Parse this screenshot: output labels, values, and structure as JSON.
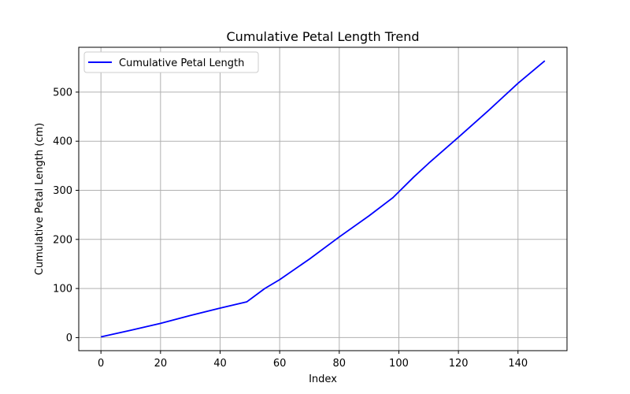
{
  "chart_data": {
    "type": "line",
    "title": "Cumulative Petal Length Trend",
    "xlabel": "Index",
    "ylabel": "Cumulative Petal Length (cm)",
    "xlim": [
      -7.45,
      156.45
    ],
    "ylim": [
      -26.6,
      591.3
    ],
    "xticks": [
      0,
      20,
      40,
      60,
      80,
      100,
      120,
      140
    ],
    "yticks": [
      0,
      100,
      200,
      300,
      400,
      500
    ],
    "grid": true,
    "legend_position": "top-left",
    "series": [
      {
        "name": "Cumulative Petal Length",
        "color": "#0000ff",
        "x": [
          0,
          10,
          20,
          30,
          40,
          49,
          55,
          60,
          70,
          80,
          90,
          98,
          105,
          110,
          120,
          130,
          140,
          149
        ],
        "y": [
          1.4,
          15,
          29,
          45,
          60,
          73,
          100,
          118,
          160,
          205,
          248,
          285,
          327,
          355,
          408,
          462,
          518,
          563.8
        ]
      }
    ]
  }
}
